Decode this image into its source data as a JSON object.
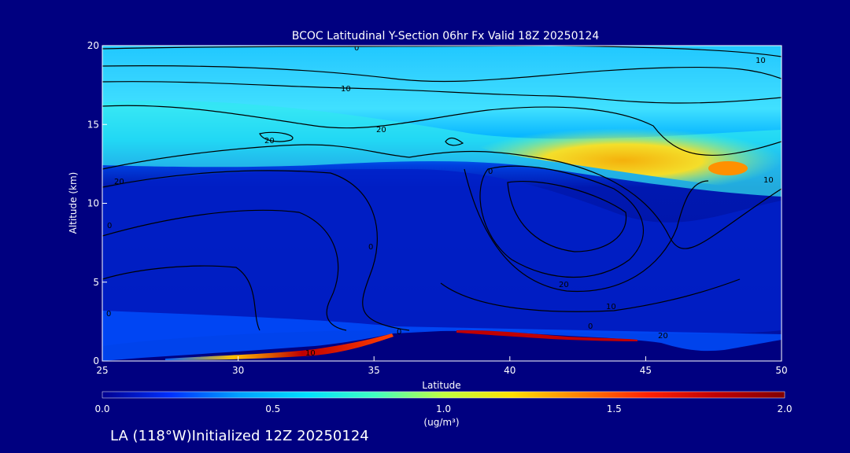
{
  "chart_data": {
    "type": "heatmap",
    "title": "BCOC Latitudinal Y-Section 06hr  Fx Valid 18Z 20250124",
    "subtitle": "LA (118°W)Initialized 12Z 20250124",
    "xlabel": "Latitude",
    "ylabel": "Altitude (km)",
    "xlim": [
      25,
      50
    ],
    "ylim": [
      0,
      20
    ],
    "xticks": [
      "25",
      "30",
      "35",
      "40",
      "45",
      "50"
    ],
    "yticks": [
      "0",
      "5",
      "10",
      "15",
      "20"
    ],
    "colorbar": {
      "range": [
        0.0,
        2.0
      ],
      "ticks": [
        "0.0",
        "0.5",
        "1.0",
        "1.5",
        "2.0"
      ],
      "units": "(ug/m³)",
      "colors": [
        "#000090",
        "#0030ff",
        "#00a0ff",
        "#00e0ff",
        "#40ffc0",
        "#c0ff40",
        "#ffe000",
        "#ff8000",
        "#ff2000",
        "#c00000",
        "#800000"
      ]
    },
    "contour_labels": [
      "0",
      "10",
      "20",
      "20",
      "20",
      "20",
      "0",
      "0",
      "10",
      "10",
      "0",
      "0",
      "20",
      "10",
      "0",
      "0",
      "10"
    ],
    "background": "#000080"
  }
}
